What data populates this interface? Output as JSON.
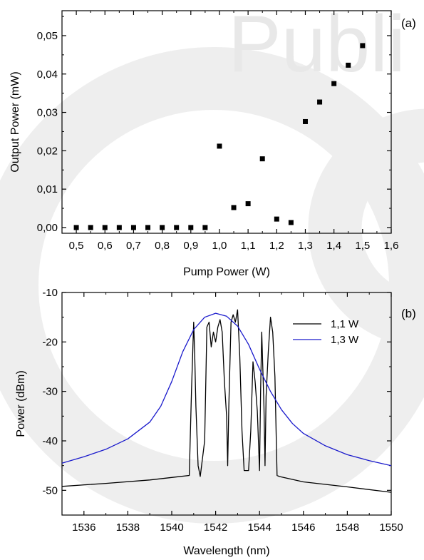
{
  "watermark": {
    "text": "Publi"
  },
  "chart_data": [
    {
      "panel": "(a)",
      "type": "scatter",
      "xlabel": "Pump Power (W)",
      "ylabel": "Output Power (mW)",
      "xlim": [
        0.45,
        1.6
      ],
      "ylim": [
        -0.0015,
        0.0565
      ],
      "x_ticks": [
        "0,5",
        "0,6",
        "0,7",
        "0,8",
        "0,9",
        "1,0",
        "1,1",
        "1,2",
        "1,3",
        "1,4",
        "1,5",
        "1,6"
      ],
      "x_tick_values": [
        0.5,
        0.6,
        0.7,
        0.8,
        0.9,
        1.0,
        1.1,
        1.2,
        1.3,
        1.4,
        1.5,
        1.6
      ],
      "y_ticks": [
        "0,00",
        "0,01",
        "0,02",
        "0,03",
        "0,04",
        "0,05"
      ],
      "y_tick_values": [
        0.0,
        0.01,
        0.02,
        0.03,
        0.04,
        0.05
      ],
      "marker_color": "#000000",
      "points": [
        [
          0.5,
          0.0
        ],
        [
          0.55,
          0.0
        ],
        [
          0.6,
          0.0
        ],
        [
          0.65,
          0.0
        ],
        [
          0.7,
          0.0
        ],
        [
          0.75,
          0.0
        ],
        [
          0.8,
          0.0
        ],
        [
          0.85,
          0.0
        ],
        [
          0.9,
          0.0
        ],
        [
          0.95,
          0.0
        ],
        [
          1.0,
          0.0212
        ],
        [
          1.05,
          0.0052
        ],
        [
          1.1,
          0.0062
        ],
        [
          1.15,
          0.0179
        ],
        [
          1.2,
          0.0022
        ],
        [
          1.25,
          0.0013
        ],
        [
          1.3,
          0.0276
        ],
        [
          1.35,
          0.0327
        ],
        [
          1.4,
          0.0375
        ],
        [
          1.45,
          0.0423
        ],
        [
          1.5,
          0.0474
        ]
      ]
    },
    {
      "panel": "(b)",
      "type": "line",
      "xlabel": "Wavelength (nm)",
      "ylabel": "Power (dBm)",
      "xlim": [
        1535,
        1550
      ],
      "ylim": [
        -55,
        -10
      ],
      "x_ticks": [
        "1536",
        "1538",
        "1540",
        "1542",
        "1544",
        "1546",
        "1548",
        "1550"
      ],
      "x_tick_values": [
        1536,
        1538,
        1540,
        1542,
        1544,
        1546,
        1548,
        1550
      ],
      "y_ticks": [
        "-10",
        "-20",
        "-30",
        "-40",
        "-50"
      ],
      "y_tick_values": [
        -10,
        -20,
        -30,
        -40,
        -50
      ],
      "legend_position": "top-right",
      "series": [
        {
          "name": "1,1 W",
          "color": "#000000",
          "x": [
            1535,
            1537,
            1539,
            1540,
            1540.8,
            1540.9,
            1541.0,
            1541.05,
            1541.1,
            1541.2,
            1541.3,
            1541.5,
            1541.6,
            1541.7,
            1541.8,
            1541.9,
            1542.0,
            1542.1,
            1542.2,
            1542.3,
            1542.4,
            1542.5,
            1542.55,
            1542.6,
            1542.7,
            1542.8,
            1542.9,
            1543.0,
            1543.1,
            1543.2,
            1543.3,
            1543.5,
            1543.6,
            1543.7,
            1543.8,
            1543.9,
            1544.0,
            1544.05,
            1544.1,
            1544.2,
            1544.25,
            1544.3,
            1544.4,
            1544.5,
            1544.6,
            1544.7,
            1544.8,
            1544.9,
            1545.0,
            1546,
            1548,
            1550
          ],
          "y": [
            -49.2,
            -48.6,
            -47.9,
            -47.4,
            -47.0,
            -30,
            -16,
            -23,
            -33,
            -45,
            -47.2,
            -40,
            -17,
            -16,
            -21,
            -18,
            -20,
            -17,
            -15.5,
            -18,
            -28,
            -35,
            -45,
            -33,
            -16,
            -14.5,
            -16,
            -13.5,
            -23,
            -38,
            -46,
            -46,
            -38,
            -24,
            -28,
            -34,
            -46,
            -30,
            -18,
            -33,
            -45,
            -31,
            -22,
            -15,
            -18,
            -27,
            -47,
            -47.2,
            -47.3,
            -48.3,
            -49.3,
            -50.4
          ]
        },
        {
          "name": "1,3 W",
          "color": "#1a1acc",
          "x": [
            1535,
            1536,
            1537,
            1538,
            1539,
            1539.5,
            1540,
            1540.5,
            1541,
            1541.5,
            1542,
            1542.5,
            1543,
            1543.5,
            1544,
            1544.5,
            1545,
            1545.5,
            1546,
            1547,
            1548,
            1549,
            1550
          ],
          "y": [
            -44.5,
            -43.2,
            -41.7,
            -39.6,
            -36.2,
            -33.0,
            -28.0,
            -22.0,
            -17.5,
            -15.0,
            -14.2,
            -14.8,
            -16.8,
            -20.5,
            -25.5,
            -30.0,
            -33.7,
            -36.5,
            -38.5,
            -41.0,
            -42.8,
            -44.0,
            -45.0
          ]
        }
      ]
    }
  ]
}
